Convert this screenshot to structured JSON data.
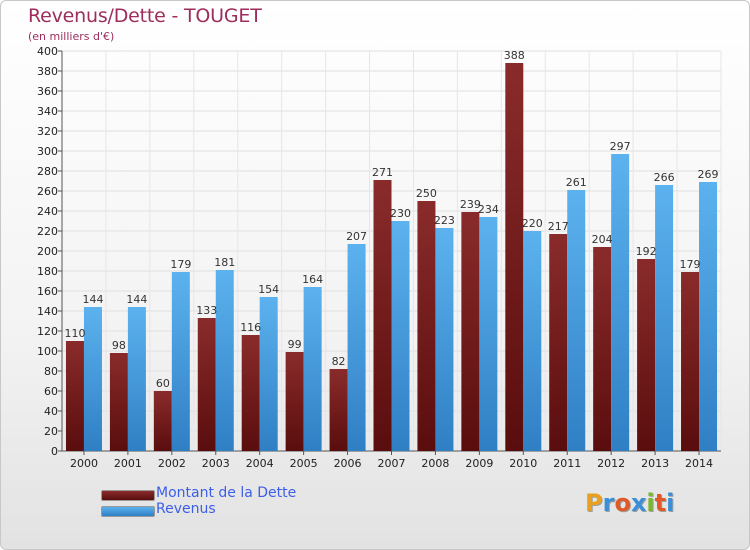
{
  "title": "Revenus/Dette - TOUGET",
  "subtitle": "(en milliers d'€)",
  "logo_text": "Proxiti",
  "chart_data": {
    "type": "bar",
    "categories": [
      "2000",
      "2001",
      "2002",
      "2003",
      "2004",
      "2005",
      "2006",
      "2007",
      "2008",
      "2009",
      "2010",
      "2011",
      "2012",
      "2013",
      "2014"
    ],
    "series": [
      {
        "name": "Montant de la Dette",
        "color": "#7d1f1f",
        "values": [
          110,
          98,
          60,
          133,
          116,
          99,
          82,
          271,
          250,
          239,
          388,
          217,
          204,
          192,
          179
        ]
      },
      {
        "name": "Revenus",
        "color": "#4fa3e0",
        "values": [
          144,
          144,
          179,
          181,
          154,
          164,
          207,
          230,
          223,
          234,
          220,
          261,
          297,
          266,
          269
        ]
      }
    ],
    "ylim": [
      0,
      400
    ],
    "ytick_step": 20,
    "grid": true,
    "legend": "bottom-left"
  }
}
